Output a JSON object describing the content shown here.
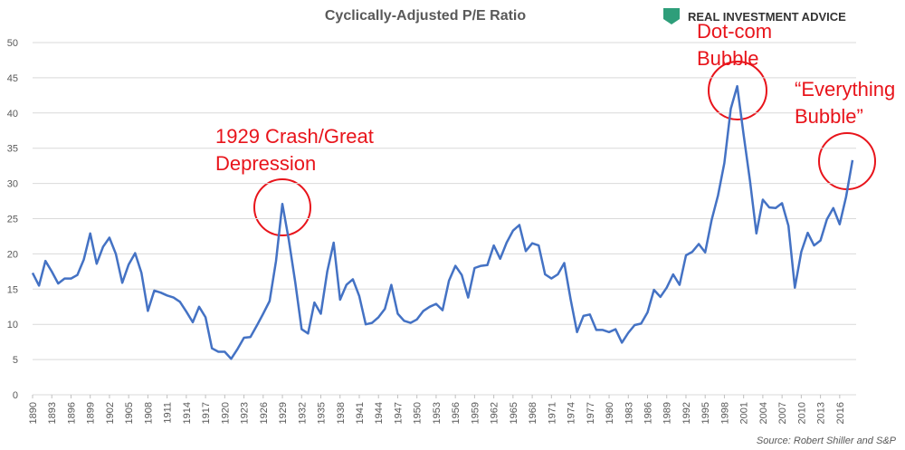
{
  "chart_data": {
    "type": "line",
    "title": "Cyclically-Adjusted P/E Ratio",
    "logo": "REAL INVESTMENT ADVICE",
    "source": "Source: Robert Shiller and S&P",
    "annotations": [
      {
        "lines": [
          "1929 Crash/Great",
          "Depression"
        ]
      },
      {
        "lines": [
          "Dot-com",
          "Bubble"
        ]
      },
      {
        "lines": [
          "“Everything",
          "Bubble”"
        ]
      }
    ],
    "x": [
      1890,
      1891,
      1892,
      1893,
      1894,
      1895,
      1896,
      1897,
      1898,
      1899,
      1900,
      1901,
      1902,
      1903,
      1904,
      1905,
      1906,
      1907,
      1908,
      1909,
      1910,
      1911,
      1912,
      1913,
      1914,
      1915,
      1916,
      1917,
      1918,
      1919,
      1920,
      1921,
      1922,
      1923,
      1924,
      1925,
      1926,
      1927,
      1928,
      1929,
      1930,
      1931,
      1932,
      1933,
      1934,
      1935,
      1936,
      1937,
      1938,
      1939,
      1940,
      1941,
      1942,
      1943,
      1944,
      1945,
      1946,
      1947,
      1948,
      1949,
      1950,
      1951,
      1952,
      1953,
      1954,
      1955,
      1956,
      1957,
      1958,
      1959,
      1960,
      1961,
      1962,
      1963,
      1964,
      1965,
      1966,
      1967,
      1968,
      1969,
      1970,
      1971,
      1972,
      1973,
      1974,
      1975,
      1976,
      1977,
      1978,
      1979,
      1980,
      1981,
      1982,
      1983,
      1984,
      1985,
      1986,
      1987,
      1988,
      1989,
      1990,
      1991,
      1992,
      1993,
      1994,
      1995,
      1996,
      1997,
      1998,
      1999,
      2000,
      2001,
      2002,
      2003,
      2004,
      2005,
      2006,
      2007,
      2008,
      2009,
      2010,
      2011,
      2012,
      2013,
      2014,
      2015,
      2016,
      2017,
      2018
    ],
    "series": [
      {
        "name": "CAPE",
        "color": "#4472c4",
        "values": [
          17.3,
          15.5,
          19,
          17.5,
          15.8,
          16.5,
          16.5,
          17,
          19.2,
          22.9,
          18.6,
          21,
          22.3,
          20,
          15.9,
          18.5,
          20.1,
          17.3,
          11.9,
          14.8,
          14.5,
          14.1,
          13.8,
          13.2,
          11.8,
          10.3,
          12.5,
          11,
          6.6,
          6.1,
          6.1,
          5.1,
          6.5,
          8.1,
          8.2,
          9.8,
          11.5,
          13.3,
          19,
          27.1,
          22,
          16,
          9.3,
          8.7,
          13.1,
          11.5,
          17.5,
          21.6,
          13.5,
          15.6,
          16.4,
          14,
          10,
          10.2,
          11,
          12.2,
          15.6,
          11.5,
          10.5,
          10.2,
          10.7,
          11.9,
          12.5,
          12.9,
          12,
          16.2,
          18.3,
          17,
          13.8,
          18,
          18.3,
          18.4,
          21.2,
          19.3,
          21.6,
          23.3,
          24.1,
          20.4,
          21.5,
          21.2,
          17.1,
          16.5,
          17.1,
          18.7,
          13.5,
          8.9,
          11.2,
          11.4,
          9.2,
          9.2,
          8.9,
          9.3,
          7.4,
          8.8,
          9.9,
          10.1,
          11.7,
          14.9,
          13.9,
          15.2,
          17.1,
          15.6,
          19.8,
          20.3,
          21.4,
          20.2,
          24.8,
          28.3,
          32.9,
          40.6,
          43.8,
          36.9,
          30.3,
          22.9,
          27.7,
          26.6,
          26.5,
          27.2,
          24,
          15.2,
          20.3,
          23,
          21.2,
          21.9,
          24.9,
          26.5,
          24.2,
          28.1,
          33.3
        ]
      }
    ],
    "xlim": [
      1890,
      2018
    ],
    "xticks": [
      1890,
      1893,
      1896,
      1899,
      1902,
      1905,
      1908,
      1911,
      1914,
      1917,
      1920,
      1923,
      1926,
      1929,
      1932,
      1935,
      1938,
      1941,
      1944,
      1947,
      1950,
      1953,
      1956,
      1959,
      1962,
      1965,
      1968,
      1971,
      1974,
      1977,
      1980,
      1983,
      1986,
      1989,
      1992,
      1995,
      1998,
      2001,
      2004,
      2007,
      2010,
      2013,
      2016
    ],
    "ylim": [
      0,
      50
    ],
    "yticks": [
      0,
      5,
      10,
      15,
      20,
      25,
      30,
      35,
      40,
      45,
      50
    ],
    "grid": true
  }
}
